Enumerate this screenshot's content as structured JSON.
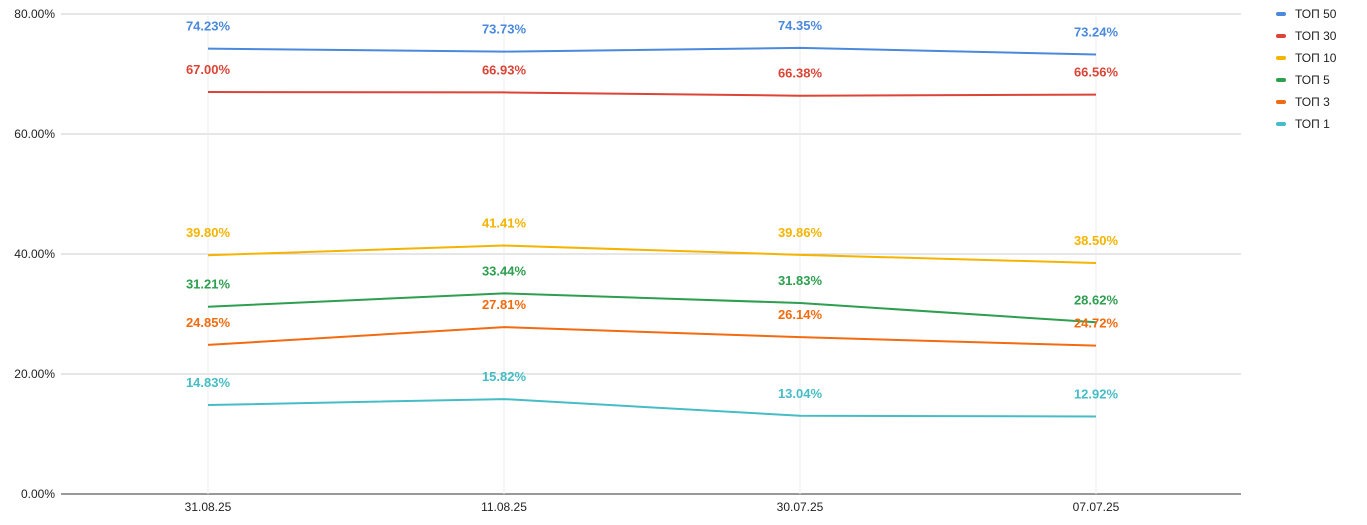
{
  "chart_data": {
    "type": "line",
    "title": "",
    "xlabel": "",
    "ylabel": "",
    "categories": [
      "31.08.25",
      "11.08.25",
      "30.07.25",
      "07.07.25"
    ],
    "ylim": [
      0,
      80
    ],
    "y_ticks": [
      "0.00%",
      "20.00%",
      "40.00%",
      "60.00%",
      "80.00%"
    ],
    "y_tick_values": [
      0,
      20,
      40,
      60,
      80
    ],
    "grid": true,
    "legend_position": "top-right",
    "series": [
      {
        "name": "ТОП 50",
        "color": "#4a89dc",
        "values": [
          74.23,
          73.73,
          74.35,
          73.24
        ],
        "labels": [
          "74.23%",
          "73.73%",
          "74.35%",
          "73.24%"
        ]
      },
      {
        "name": "ТОП 30",
        "color": "#db4437",
        "values": [
          67.0,
          66.93,
          66.38,
          66.56
        ],
        "labels": [
          "67.00%",
          "66.93%",
          "66.38%",
          "66.56%"
        ]
      },
      {
        "name": "ТОП 10",
        "color": "#f4b400",
        "values": [
          39.8,
          41.41,
          39.86,
          38.5
        ],
        "labels": [
          "39.80%",
          "41.41%",
          "39.86%",
          "38.50%"
        ]
      },
      {
        "name": "ТОП 5",
        "color": "#2e9e4f",
        "values": [
          31.21,
          33.44,
          31.83,
          28.62
        ],
        "labels": [
          "31.21%",
          "33.44%",
          "31.83%",
          "28.62%"
        ]
      },
      {
        "name": "ТОП 3",
        "color": "#f26b10",
        "values": [
          24.85,
          27.81,
          26.14,
          24.72
        ],
        "labels": [
          "24.85%",
          "27.81%",
          "26.14%",
          "24.72%"
        ]
      },
      {
        "name": "ТОП 1",
        "color": "#46bdc6",
        "values": [
          14.83,
          15.82,
          13.04,
          12.92
        ],
        "labels": [
          "14.83%",
          "15.82%",
          "13.04%",
          "12.92%"
        ]
      }
    ]
  }
}
